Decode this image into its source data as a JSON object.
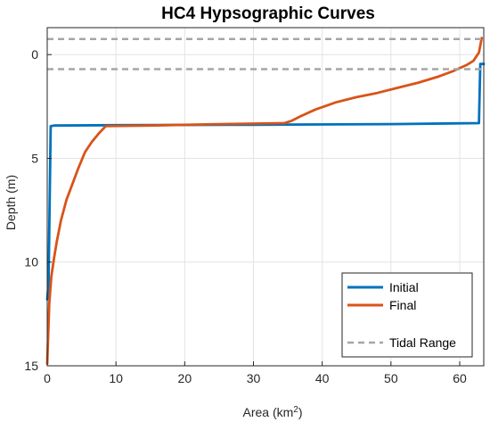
{
  "chart_data": {
    "type": "line",
    "title": "HC4 Hypsographic Curves",
    "xlabel": "Area (km",
    "xlabel_superscript": "2",
    "xlabel_suffix": ")",
    "ylabel": "Depth (m)",
    "xlim": [
      0,
      63.5
    ],
    "ylim": [
      -1.3,
      15
    ],
    "y_reversed": true,
    "xticks": [
      0,
      10,
      20,
      30,
      40,
      50,
      60
    ],
    "xtick_labels": [
      "0",
      "10",
      "20",
      "30",
      "40",
      "50",
      "60"
    ],
    "yticks": [
      0,
      5,
      10,
      15
    ],
    "ytick_labels": [
      "0",
      "5",
      "10",
      "15"
    ],
    "grid": true,
    "legend_position": "bottom-right",
    "series": [
      {
        "name": "Initial",
        "color": "#0072BD",
        "x": [
          0,
          0.2,
          0.5,
          1,
          10,
          30,
          50,
          62.8,
          63,
          63.5
        ],
        "y": [
          11.8,
          11.0,
          3.45,
          3.42,
          3.4,
          3.38,
          3.35,
          3.3,
          0.45,
          0.45
        ]
      },
      {
        "name": "Final",
        "color": "#D95319",
        "x": [
          0,
          0.3,
          0.6,
          1.0,
          1.4,
          2.0,
          2.8,
          3.7,
          4.5,
          5.5,
          6.5,
          7.5,
          8.5,
          15,
          25,
          34.5,
          35.5,
          37,
          39,
          42,
          45,
          48,
          51,
          54,
          57,
          59,
          61,
          62,
          62.8,
          63.2
        ],
        "y": [
          14.9,
          12.0,
          10.7,
          9.8,
          9.0,
          8.0,
          7.0,
          6.2,
          5.5,
          4.7,
          4.2,
          3.8,
          3.45,
          3.42,
          3.35,
          3.3,
          3.2,
          2.95,
          2.65,
          2.3,
          2.05,
          1.85,
          1.6,
          1.35,
          1.05,
          0.8,
          0.5,
          0.3,
          -0.1,
          -0.8
        ]
      },
      {
        "name": "Tidal Range",
        "color": "#A6A6A6",
        "style": "dashed",
        "hlines": [
          -0.75,
          0.7
        ]
      }
    ]
  }
}
